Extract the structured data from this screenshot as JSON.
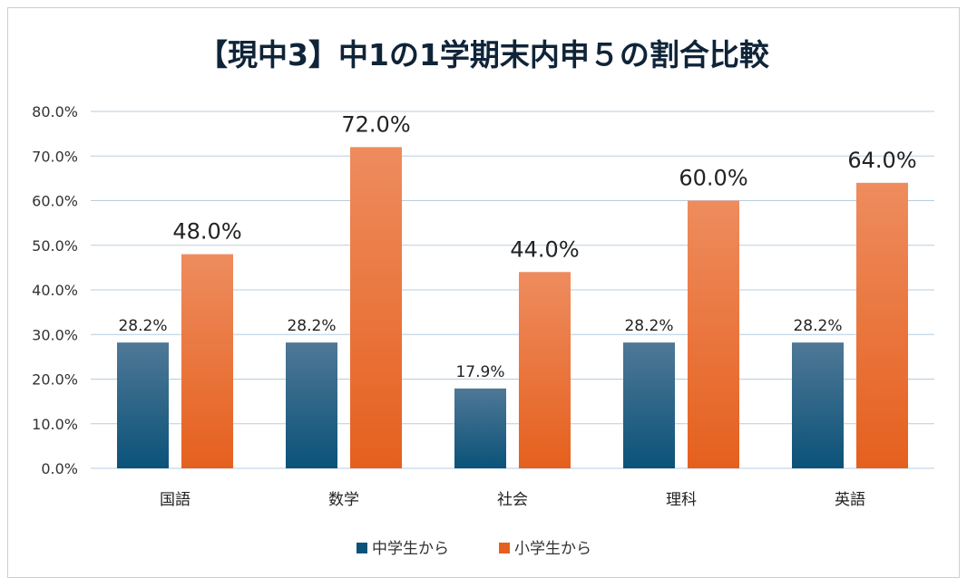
{
  "chart_data": {
    "type": "bar",
    "title": "【現中3】中1の1学期末内申５の割合比較",
    "categories": [
      "国語",
      "数学",
      "社会",
      "理科",
      "英語"
    ],
    "series": [
      {
        "name": "中学生から",
        "values": [
          28.2,
          28.2,
          17.9,
          28.2,
          28.2
        ],
        "color_top": "#4f7896",
        "color_bottom": "#0b5279"
      },
      {
        "name": "小学生から",
        "values": [
          48.0,
          72.0,
          44.0,
          60.0,
          64.0
        ],
        "color_top": "#ee8c5e",
        "color_bottom": "#e5601e"
      }
    ],
    "ylim": [
      0,
      80
    ],
    "yticks": [
      0,
      10,
      20,
      30,
      40,
      50,
      60,
      70,
      80
    ],
    "ytick_format": "percent_1dp",
    "xlabel": "",
    "ylabel": "",
    "grid": true,
    "legend_position": "bottom"
  }
}
